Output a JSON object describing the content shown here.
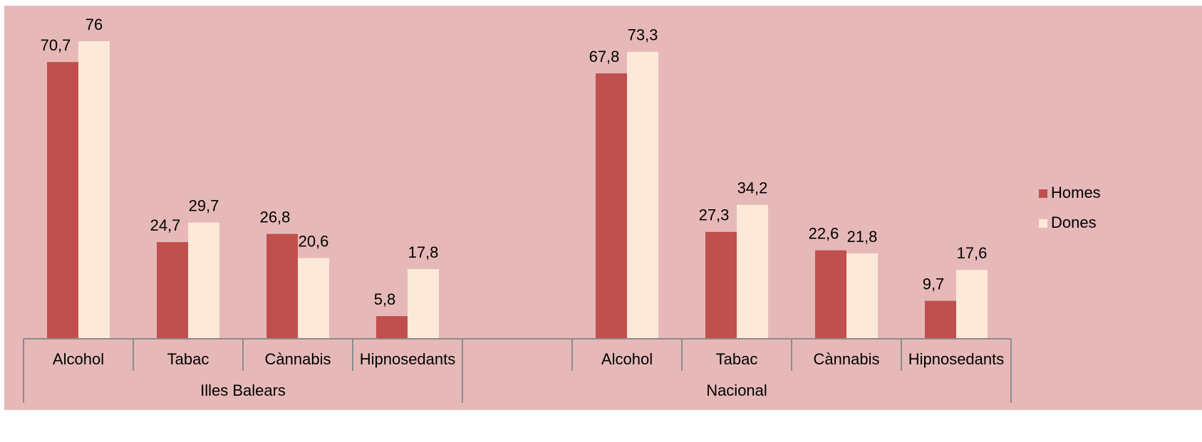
{
  "chart_data": {
    "type": "bar",
    "categories": [
      "Alcohol",
      "Tabac",
      "Cànnabis",
      "Hipnosedants",
      null,
      "Alcohol",
      "Tabac",
      "Cànnabis",
      "Hipnosedants"
    ],
    "groups": [
      {
        "name": "Illes Balears",
        "count": 4
      },
      {
        "name": "Nacional",
        "count": 5
      }
    ],
    "series": [
      {
        "name": "Homes",
        "color": "#c0504d",
        "values": [
          70.7,
          24.7,
          26.8,
          5.8,
          null,
          67.8,
          27.3,
          22.6,
          9.7
        ],
        "value_labels": [
          "70,7",
          "24,7",
          "26,8",
          "5,8",
          null,
          "67,8",
          "27,3",
          "22,6",
          "9,7"
        ]
      },
      {
        "name": "Dones",
        "color": "#fde9d9",
        "values": [
          76,
          29.7,
          20.6,
          17.8,
          null,
          73.3,
          34.2,
          21.8,
          17.6
        ],
        "value_labels": [
          "76",
          "29,7",
          "20,6",
          "17,8",
          null,
          "73,3",
          "34,2",
          "21,8",
          "17,6"
        ]
      }
    ],
    "ylim": [
      0,
      80
    ],
    "legend": "right"
  }
}
